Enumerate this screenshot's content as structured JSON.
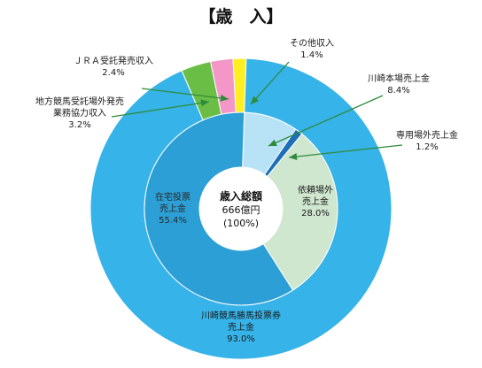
{
  "chart_data": {
    "type": "pie",
    "title": "【歳　入】",
    "center": {
      "line1": "歳入総額",
      "line2": "666億円",
      "line3": "(100%)"
    },
    "outer_ring": [
      {
        "name_lines": [
          "川崎競馬勝馬投票券",
          "売上金"
        ],
        "value_label": "93.0%",
        "value": 93.0,
        "color": "#36b3e8"
      },
      {
        "name_lines": [
          "地方競馬受託場外発売",
          "業務協力収入"
        ],
        "value_label": "3.2%",
        "value": 3.2,
        "color": "#6bbe45"
      },
      {
        "name_lines": [
          "ＪＲＡ受託発売収入"
        ],
        "value_label": "2.4%",
        "value": 2.4,
        "color": "#f497c8"
      },
      {
        "name_lines": [
          "その他収入"
        ],
        "value_label": "1.4%",
        "value": 1.4,
        "color": "#ffee22"
      }
    ],
    "inner_ring": [
      {
        "name_lines": [
          "川崎本場売上金"
        ],
        "value_label": "8.4%",
        "value": 8.4,
        "color": "#b8e2f5"
      },
      {
        "name_lines": [
          "専用場外売上金"
        ],
        "value_label": "1.2%",
        "value": 1.2,
        "color": "#1d6fb8"
      },
      {
        "name_lines": [
          "依頼場外",
          "売上金"
        ],
        "value_label": "28.0%",
        "value": 28.0,
        "color": "#cfe6cf"
      },
      {
        "name_lines": [
          "在宅投票",
          "売上金"
        ],
        "value_label": "55.4%",
        "value": 55.4,
        "color": "#2c9fd6"
      }
    ]
  }
}
